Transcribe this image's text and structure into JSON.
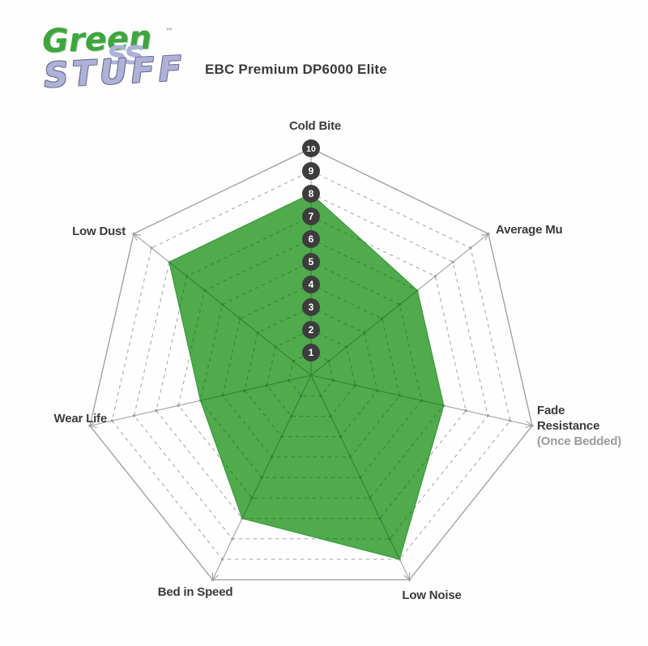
{
  "logo": {
    "word_green": "Green",
    "word_ss": "ss",
    "word_stuff": "STUFF",
    "trademark": "™",
    "green_color": "#3fa53f",
    "lavender_color": "#aeb1d8"
  },
  "chart_data": {
    "type": "radar",
    "title": "EBC Premium DP6000 Elite",
    "axes": [
      {
        "label": "Cold Bite",
        "value": 8
      },
      {
        "label": "Average Mu",
        "value": 6
      },
      {
        "label": "Fade Resistance",
        "sublabel": "(Once Bedded)",
        "value": 6
      },
      {
        "label": "Low Noise",
        "value": 9
      },
      {
        "label": "Bed in Speed",
        "value": 7
      },
      {
        "label": "Wear Life",
        "value": 5
      },
      {
        "label": "Low Dust",
        "value": 8
      }
    ],
    "scale_min": 1,
    "scale_max": 10,
    "tick_labels": [
      "1",
      "2",
      "3",
      "4",
      "5",
      "6",
      "7",
      "8",
      "9",
      "10"
    ],
    "legend": "none",
    "grid": "dashed heptagonal rings, solid outer ring and radial axes",
    "colors": {
      "fill": "#4fab4c",
      "fill_edge": "#3e9a40",
      "grid": "#a2a2a2",
      "grid_inner": "#2f8531",
      "marker": "#3d3d3d",
      "marker_text": "#ffffff",
      "label": "#3b3b3b",
      "sublabel": "#9c9c9c"
    }
  }
}
